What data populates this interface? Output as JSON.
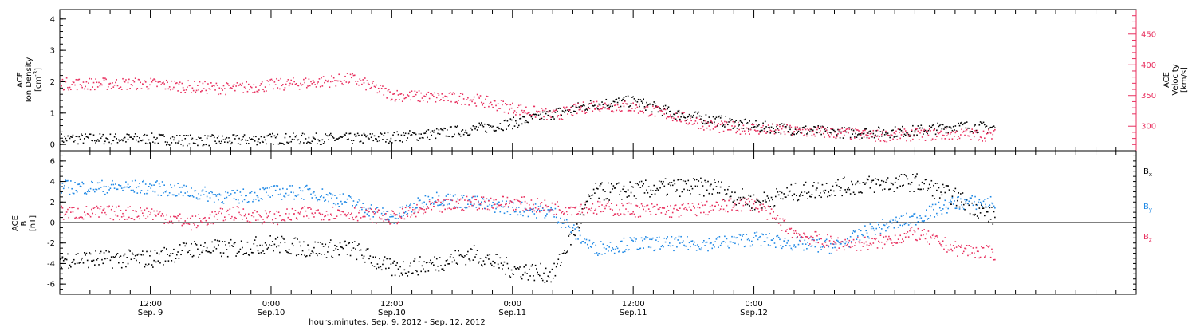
{
  "chart_data": [
    {
      "type": "scatter",
      "panel": "top",
      "left_axis": {
        "label_line1": "ACE",
        "label_line2": "Ion Density",
        "unit_prefix": "[cm",
        "unit_sup": "-3",
        "unit_suffix": "]",
        "ylim": [
          -0.2,
          4.3
        ],
        "ticks": [
          "0",
          "1",
          "2",
          "3",
          "4"
        ]
      },
      "right_axis": {
        "label_line1": "ACE",
        "label_line2": "Velocity",
        "unit": "[km/s]",
        "ylim": [
          260,
          490
        ],
        "ticks": [
          "300",
          "350",
          "400",
          "450"
        ]
      },
      "series": [
        {
          "name": "Ion Density",
          "color": "#000000",
          "axis": "left",
          "t": [
            0,
            4,
            8,
            12,
            16,
            20,
            24,
            28,
            32,
            36,
            40,
            44,
            48,
            52,
            56,
            60,
            64,
            68,
            72,
            76,
            80,
            84
          ],
          "y": [
            0.2,
            0.15,
            0.15,
            0.2,
            0.2,
            0.2,
            0.25,
            0.35,
            0.5,
            0.7,
            1.0,
            1.3,
            1.4,
            1.0,
            0.8,
            0.6,
            0.5,
            0.4,
            0.4,
            0.45,
            0.6,
            0.55
          ]
        },
        {
          "name": "Velocity",
          "color": "#e8305f",
          "axis": "right",
          "t": [
            0,
            4,
            8,
            12,
            16,
            20,
            24,
            28,
            32,
            36,
            40,
            44,
            48,
            52,
            56,
            60,
            64,
            68,
            72,
            76,
            80,
            84
          ],
          "y": [
            370,
            365,
            362,
            368,
            372,
            378,
            352,
            348,
            345,
            330,
            318,
            335,
            332,
            318,
            300,
            297,
            293,
            290,
            285,
            287,
            288,
            286
          ]
        }
      ]
    },
    {
      "type": "scatter",
      "panel": "bottom",
      "left_axis": {
        "label_line1": "ACE",
        "label_line2": "B",
        "unit": "[nT]",
        "ylim": [
          -7,
          7
        ],
        "ticks": [
          "-6",
          "-4",
          "-2",
          "0",
          "2",
          "4",
          "6"
        ]
      },
      "zero_line": true,
      "series": [
        {
          "name": "B",
          "sub": "x",
          "color": "#000000",
          "t": [
            0,
            4,
            8,
            12,
            16,
            20,
            24,
            28,
            32,
            36,
            40,
            44,
            48,
            52,
            56,
            60,
            64,
            68,
            72,
            76,
            80,
            84
          ],
          "y": [
            -3.5,
            -2.5,
            -2.5,
            -2.0,
            -2.5,
            -2.5,
            -4.5,
            -4.0,
            -3.0,
            -4.5,
            -5.0,
            3.0,
            3.2,
            3.5,
            3.5,
            2.0,
            3.0,
            3.5,
            3.8,
            4.0,
            2.5,
            0.5
          ]
        },
        {
          "name": "B",
          "sub": "y",
          "color": "#1e88e5",
          "t": [
            0,
            4,
            8,
            12,
            16,
            20,
            24,
            28,
            32,
            36,
            40,
            44,
            48,
            52,
            56,
            60,
            64,
            68,
            72,
            76,
            80,
            84
          ],
          "y": [
            3.5,
            3.0,
            2.5,
            3.0,
            3.0,
            2.0,
            0.5,
            2.5,
            2.0,
            1.5,
            1.0,
            -2.5,
            -2.0,
            -2.0,
            -2.0,
            -1.5,
            -2.0,
            -2.3,
            -0.5,
            0.5,
            2.0,
            2.0
          ]
        },
        {
          "name": "B",
          "sub": "z",
          "color": "#e8305f",
          "t": [
            0,
            4,
            8,
            12,
            16,
            20,
            24,
            28,
            32,
            36,
            40,
            44,
            48,
            52,
            56,
            60,
            64,
            68,
            72,
            76,
            80,
            84
          ],
          "y": [
            1.0,
            0.0,
            1.0,
            0.5,
            1.0,
            1.0,
            0.5,
            1.5,
            2.0,
            2.0,
            1.5,
            1.5,
            1.3,
            1.2,
            1.5,
            2.0,
            -1.0,
            -2.0,
            -2.0,
            -1.0,
            -2.5,
            -3.0
          ]
        }
      ]
    }
  ],
  "x_axis": {
    "range_hours": [
      -9,
      98
    ],
    "ticks": [
      {
        "t": 0,
        "time": "12:00",
        "date": "Sep. 9"
      },
      {
        "t": 12,
        "time": "0:00",
        "date": "Sep.10"
      },
      {
        "t": 24,
        "time": "12:00",
        "date": "Sep.10"
      },
      {
        "t": 36,
        "time": "0:00",
        "date": "Sep.11"
      },
      {
        "t": 48,
        "time": "12:00",
        "date": "Sep.11"
      },
      {
        "t": 60,
        "time": "0:00",
        "date": "Sep.12"
      }
    ],
    "title": "hours:minutes, Sep.  9, 2012 - Sep. 12, 2012"
  }
}
